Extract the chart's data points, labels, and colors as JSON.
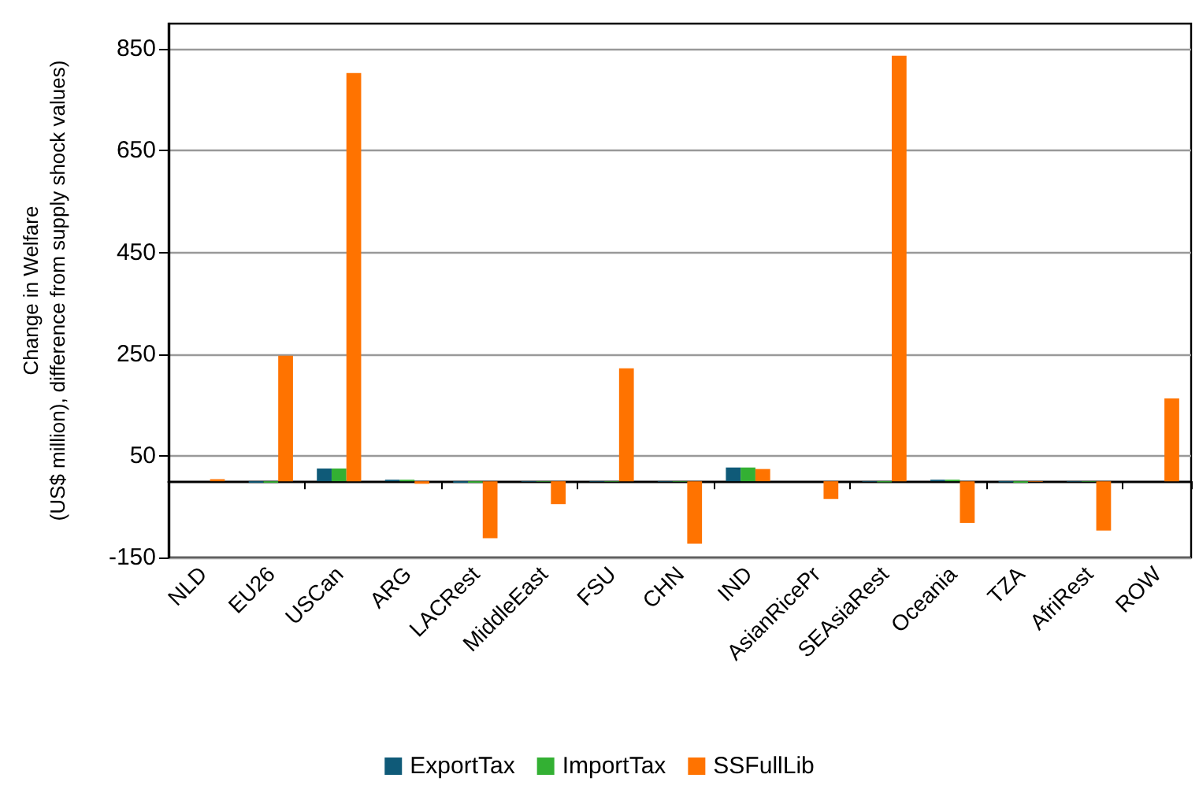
{
  "chart_data": {
    "type": "bar",
    "ylabel": "Change in Welfare\n(US$ million), difference from supply shock values)",
    "categories": [
      "NLD",
      "EU26",
      "USCan",
      "ARG",
      "LACRest",
      "MiddleEast",
      "FSU",
      "CHN",
      "IND",
      "AsianRicePr",
      "SEAsiaRest",
      "Oceania",
      "TZA",
      "AfriRest",
      "ROW"
    ],
    "series": [
      {
        "name": "ExportTax",
        "color": "#0f5a78",
        "values": [
          0,
          -3,
          25,
          3,
          -3,
          -1,
          -1,
          -1,
          27,
          0,
          -1,
          3,
          -2,
          -1,
          0
        ]
      },
      {
        "name": "ImportTax",
        "color": "#33b033",
        "values": [
          0,
          -3,
          25,
          3,
          -3,
          -1,
          -1,
          -1,
          27,
          0,
          -2,
          3,
          -3,
          -1,
          0
        ]
      },
      {
        "name": "SSFullLib",
        "color": "#ff7300",
        "values": [
          4,
          247,
          803,
          -5,
          -112,
          -45,
          222,
          -123,
          24,
          -35,
          837,
          -82,
          -1,
          -97,
          163
        ]
      }
    ],
    "ylim": [
      -150,
      900
    ],
    "yticks": [
      -150,
      50,
      250,
      450,
      650,
      850
    ],
    "grid": "y",
    "legend": "bottom"
  }
}
